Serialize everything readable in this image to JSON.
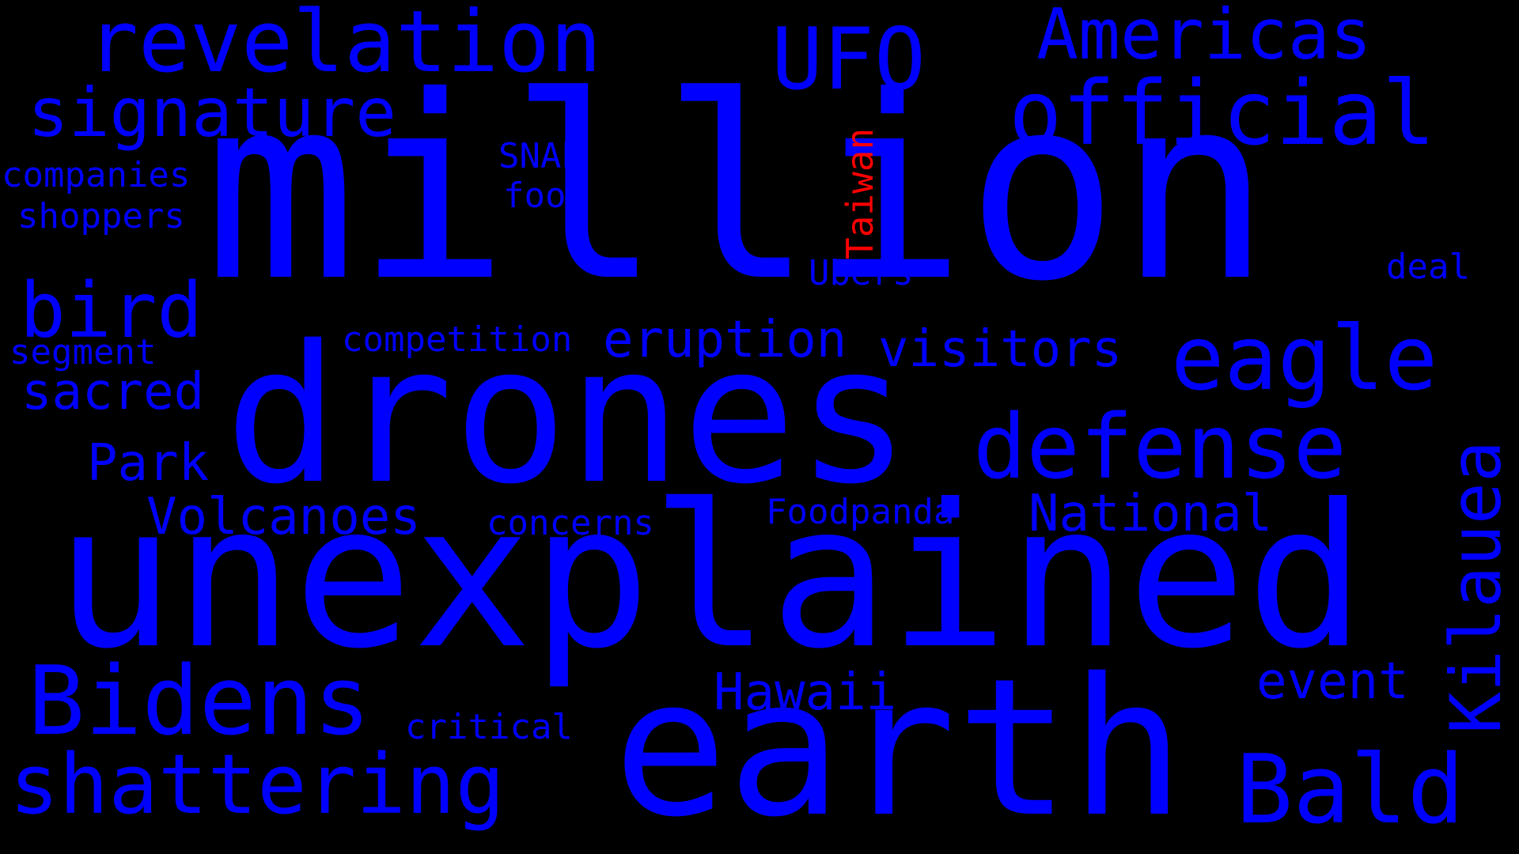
{
  "palette": {
    "background": "#000000",
    "primary": "#0000ff",
    "highlight": "#ff0000"
  },
  "words": {
    "million": "million",
    "drones": "drones",
    "unexplained": "unexplained",
    "earth": "earth",
    "revelation": "revelation",
    "ufo": "UFO",
    "americas": "Americas",
    "official": "official",
    "signature": "signature",
    "companies": "companies",
    "shoppers": "shoppers",
    "snap": "SNAP",
    "food": "food",
    "taiwan": "Taiwan",
    "ubers": "Ubers",
    "deal": "deal",
    "bird": "bird",
    "segment": "segment",
    "sacred": "sacred",
    "competition": "competition",
    "eruption": "eruption",
    "visitors": "visitors",
    "eagle": "eagle",
    "defense": "defense",
    "park": "Park",
    "volcanoes": "Volcanoes",
    "concerns": "concerns",
    "foodpanda": "Foodpanda",
    "national": "National",
    "kilauea": "Kilauea",
    "bidens": "Bidens",
    "hawaii": "Hawaii",
    "event": "event",
    "critical": "critical",
    "shattering": "shattering",
    "bald": "Bald"
  }
}
